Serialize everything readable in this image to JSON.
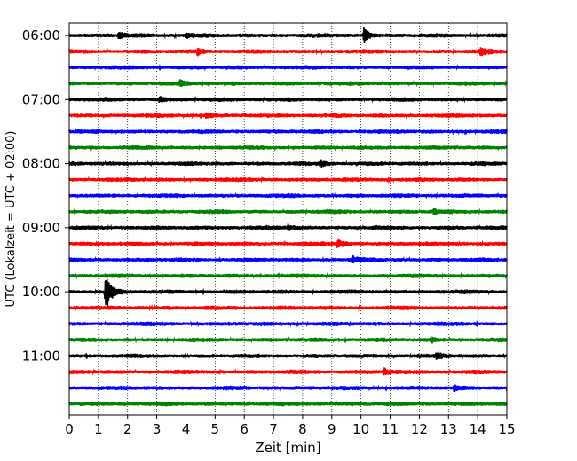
{
  "chart_data": {
    "type": "line",
    "title": "",
    "xlabel": "Zeit  [min]",
    "ylabel": "UTC (Lokalzeit = UTC + 02:00)",
    "xlim": [
      0,
      15
    ],
    "x_ticks": [
      "0",
      "1",
      "2",
      "3",
      "4",
      "5",
      "6",
      "7",
      "8",
      "9",
      "10",
      "11",
      "12",
      "13",
      "14",
      "15"
    ],
    "y_ticks": [
      "06:00",
      "07:00",
      "08:00",
      "09:00",
      "10:00",
      "11:00"
    ],
    "grid": "vertical dotted",
    "row_colors": [
      "#000000",
      "#ff0000",
      "#0000ff",
      "#008000"
    ],
    "rows": [
      {
        "start": "06:00",
        "color": "#000000"
      },
      {
        "start": "06:15",
        "color": "#ff0000"
      },
      {
        "start": "06:30",
        "color": "#0000ff"
      },
      {
        "start": "06:45",
        "color": "#008000"
      },
      {
        "start": "07:00",
        "color": "#000000"
      },
      {
        "start": "07:15",
        "color": "#ff0000"
      },
      {
        "start": "07:30",
        "color": "#0000ff"
      },
      {
        "start": "07:45",
        "color": "#008000"
      },
      {
        "start": "08:00",
        "color": "#000000"
      },
      {
        "start": "08:15",
        "color": "#ff0000"
      },
      {
        "start": "08:30",
        "color": "#0000ff"
      },
      {
        "start": "08:45",
        "color": "#008000"
      },
      {
        "start": "09:00",
        "color": "#000000"
      },
      {
        "start": "09:15",
        "color": "#ff0000"
      },
      {
        "start": "09:30",
        "color": "#0000ff"
      },
      {
        "start": "09:45",
        "color": "#008000"
      },
      {
        "start": "10:00",
        "color": "#000000"
      },
      {
        "start": "10:15",
        "color": "#ff0000"
      },
      {
        "start": "10:30",
        "color": "#0000ff"
      },
      {
        "start": "10:45",
        "color": "#008000"
      },
      {
        "start": "11:00",
        "color": "#000000"
      },
      {
        "start": "11:15",
        "color": "#ff0000"
      },
      {
        "start": "11:30",
        "color": "#0000ff"
      },
      {
        "start": "11:45",
        "color": "#008000"
      }
    ],
    "events": [
      {
        "row": "06:00",
        "minute": 1.7,
        "amplitude": 0.4
      },
      {
        "row": "06:00",
        "minute": 4.0,
        "amplitude": 0.3
      },
      {
        "row": "06:00",
        "minute": 10.1,
        "amplitude": 0.8
      },
      {
        "row": "06:15",
        "minute": 4.4,
        "amplitude": 0.4
      },
      {
        "row": "06:15",
        "minute": 14.1,
        "amplitude": 0.5
      },
      {
        "row": "06:45",
        "minute": 3.8,
        "amplitude": 0.4
      },
      {
        "row": "07:00",
        "minute": 3.1,
        "amplitude": 0.3
      },
      {
        "row": "07:15",
        "minute": 4.7,
        "amplitude": 0.3
      },
      {
        "row": "08:00",
        "minute": 8.6,
        "amplitude": 0.4
      },
      {
        "row": "08:45",
        "minute": 12.5,
        "amplitude": 0.3
      },
      {
        "row": "09:00",
        "minute": 7.5,
        "amplitude": 0.3
      },
      {
        "row": "09:15",
        "minute": 9.2,
        "amplitude": 0.5
      },
      {
        "row": "09:30",
        "minute": 9.7,
        "amplitude": 0.4
      },
      {
        "row": "10:00",
        "minute": 1.25,
        "amplitude": 2.5
      },
      {
        "row": "10:45",
        "minute": 12.4,
        "amplitude": 0.3
      },
      {
        "row": "11:00",
        "minute": 12.6,
        "amplitude": 0.4
      },
      {
        "row": "11:15",
        "minute": 10.8,
        "amplitude": 0.4
      },
      {
        "row": "11:30",
        "minute": 13.2,
        "amplitude": 0.4
      }
    ]
  }
}
